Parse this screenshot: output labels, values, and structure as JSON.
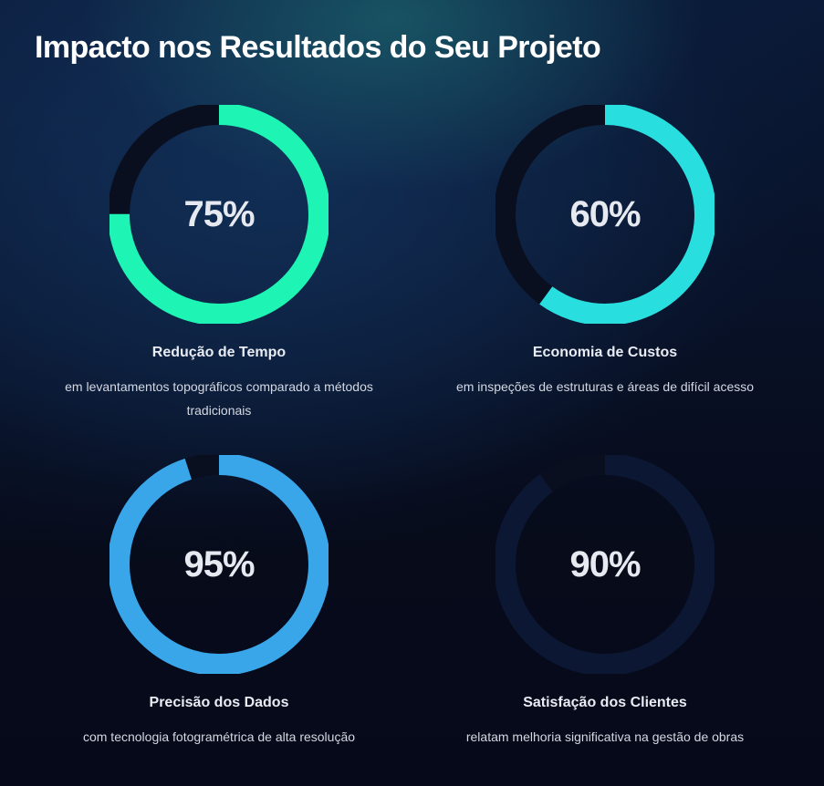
{
  "page": {
    "title": "Impacto nos Resultados do Seu Projeto"
  },
  "stats": [
    {
      "value_label": "75%",
      "value": 75,
      "label": "Redução de Tempo",
      "description": "em levantamentos topográficos comparado a métodos tradicionais",
      "color": "#1ef5b4"
    },
    {
      "value_label": "60%",
      "value": 60,
      "label": "Economia de Custos",
      "description": "em inspeções de estruturas e áreas de difícil acesso",
      "color": "#29dede"
    },
    {
      "value_label": "95%",
      "value": 95,
      "label": "Precisão dos Dados",
      "description": "com tecnologia fotogramétrica de alta resolução",
      "color": "#3aa6ea"
    },
    {
      "value_label": "90%",
      "value": 90,
      "label": "Satisfação dos Clientes",
      "description": "relatam melhoria significativa na gestão de obras",
      "color": "#0c1733"
    }
  ],
  "colors": {
    "track": "#0a0f1f"
  }
}
